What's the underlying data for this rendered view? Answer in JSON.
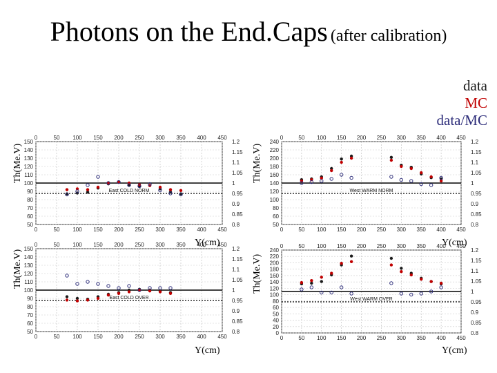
{
  "title": {
    "main": "Photons on the End.Caps",
    "sub": "(after calibration)"
  },
  "legend": [
    {
      "label": "data",
      "color": "#1a1a1a"
    },
    {
      "label": "MC",
      "color": "#c00000"
    },
    {
      "label": "data/MC",
      "color": "#2d2d7a"
    }
  ],
  "axis_text": {
    "ylabel": "Th(Me.V)",
    "xlabel": "Y(cm)"
  },
  "chart_data": [
    {
      "type": "scatter",
      "label": "East COLD NORM",
      "xlabel": "Y(cm)",
      "ylabel": "Th(Me.V)",
      "xlim": [
        0,
        450
      ],
      "ylim": [
        50,
        150
      ],
      "y2lim": [
        0.8,
        1.2
      ],
      "xticks": [
        "0",
        "50",
        "100",
        "150",
        "200",
        "250",
        "300",
        "350",
        "400",
        "450"
      ],
      "yticks": [
        "150",
        "140",
        "130",
        "120",
        "110",
        "100",
        "90",
        "80",
        "70",
        "60",
        "50"
      ],
      "y2ticks": [
        "1.2",
        "1.15",
        "1.1",
        "1.05",
        "1",
        "0.95",
        "0.9",
        "0.85",
        "0.8"
      ],
      "x": [
        75,
        100,
        125,
        150,
        175,
        200,
        225,
        250,
        275,
        300,
        325,
        350
      ],
      "series": [
        {
          "name": "data",
          "values": [
            87,
            88,
            89,
            94,
            99,
            101,
            98,
            96,
            97,
            93,
            89,
            87
          ]
        },
        {
          "name": "MC",
          "values": [
            92,
            93,
            92,
            95,
            100,
            101,
            100,
            98,
            97,
            95,
            92,
            91
          ]
        },
        {
          "name": "data/MC",
          "values": [
            0.945,
            0.96,
            0.99,
            1.03,
            1.0,
            1.005,
            0.99,
            0.985,
            0.995,
            0.965,
            0.95,
            0.945
          ]
        }
      ]
    },
    {
      "type": "scatter",
      "label": "West WARM NORM",
      "xlabel": "Y(cm)",
      "ylabel": "Th(Me.V)",
      "xlim": [
        0,
        450
      ],
      "ylim": [
        50,
        250
      ],
      "y2lim": [
        0.8,
        1.2
      ],
      "xticks": [
        "0",
        "50",
        "100",
        "150",
        "200",
        "250",
        "300",
        "350",
        "400",
        "450"
      ],
      "yticks": [
        "240",
        "220",
        "200",
        "180",
        "160",
        "140",
        "120",
        "100",
        "80",
        "60",
        "50"
      ],
      "y2ticks": [
        "1.2",
        "1.15",
        "1.1",
        "1.05",
        "1",
        "0.95",
        "0.9",
        "0.85",
        "0.8"
      ],
      "x": [
        50,
        75,
        100,
        125,
        150,
        175,
        275,
        300,
        325,
        350,
        375,
        400
      ],
      "series": [
        {
          "name": "data",
          "values": [
            158,
            160,
            165,
            185,
            208,
            215,
            212,
            193,
            188,
            172,
            163,
            160
          ]
        },
        {
          "name": "MC",
          "values": [
            155,
            158,
            162,
            180,
            200,
            210,
            205,
            190,
            185,
            175,
            165,
            155
          ]
        },
        {
          "name": "data/MC",
          "values": [
            1.0,
            1.005,
            1.01,
            1.02,
            1.04,
            1.025,
            1.03,
            1.015,
            1.01,
            0.995,
            0.99,
            1.025
          ]
        }
      ]
    },
    {
      "type": "scatter",
      "label": "East COLD OVER",
      "xlabel": "Y(cm)",
      "ylabel": "Th(Me.V)",
      "xlim": [
        0,
        450
      ],
      "ylim": [
        50,
        150
      ],
      "y2lim": [
        0.8,
        1.2
      ],
      "xticks": [
        "0",
        "50",
        "100",
        "150",
        "200",
        "250",
        "300",
        "350",
        "400",
        "450"
      ],
      "yticks": [
        "150",
        "140",
        "130",
        "120",
        "110",
        "100",
        "90",
        "80",
        "70",
        "60",
        "50"
      ],
      "y2ticks": [
        "1.2",
        "1.15",
        "1.1",
        "1.05",
        "1",
        "0.95",
        "0.9",
        "0.85",
        "0.8"
      ],
      "x": [
        75,
        100,
        125,
        150,
        175,
        200,
        225,
        250,
        275,
        300,
        325
      ],
      "series": [
        {
          "name": "data",
          "values": [
            92,
            90,
            89,
            92,
            95,
            97,
            100,
            101,
            100,
            99,
            97
          ]
        },
        {
          "name": "MC",
          "values": [
            88,
            87,
            88,
            90,
            94,
            96,
            98,
            100,
            99,
            98,
            96
          ]
        },
        {
          "name": "data/MC",
          "values": [
            1.07,
            1.03,
            1.04,
            1.03,
            1.02,
            1.01,
            1.02,
            1.0,
            1.01,
            1.01,
            1.01
          ]
        }
      ]
    },
    {
      "type": "scatter",
      "label": "West WARM OVER",
      "xlabel": "Y(cm)",
      "ylabel": "Th(Me.V)",
      "xlim": [
        0,
        450
      ],
      "ylim": [
        0,
        250
      ],
      "y2lim": [
        0.8,
        1.2
      ],
      "xticks": [
        "0",
        "50",
        "100",
        "150",
        "200",
        "250",
        "300",
        "350",
        "400",
        "450"
      ],
      "yticks": [
        "240",
        "220",
        "200",
        "180",
        "160",
        "140",
        "120",
        "100",
        "80",
        "60",
        "50",
        "40",
        "20",
        "0"
      ],
      "y2ticks": [
        "1.2",
        "1.15",
        "1.1",
        "1.05",
        "1",
        "0.95",
        "0.9",
        "0.85",
        "0.8"
      ],
      "x": [
        50,
        75,
        100,
        125,
        150,
        175,
        275,
        300,
        325,
        350,
        375,
        400
      ],
      "series": [
        {
          "name": "data",
          "values": [
            148,
            150,
            155,
            175,
            205,
            232,
            225,
            195,
            180,
            165,
            155,
            148
          ]
        },
        {
          "name": "MC",
          "values": [
            152,
            158,
            168,
            180,
            210,
            215,
            205,
            185,
            175,
            162,
            155,
            150
          ]
        },
        {
          "name": "data/MC",
          "values": [
            1.01,
            1.02,
            0.995,
            0.995,
            1.02,
            0.99,
            1.04,
            0.99,
            0.985,
            0.99,
            1.0,
            1.02
          ]
        }
      ]
    }
  ]
}
